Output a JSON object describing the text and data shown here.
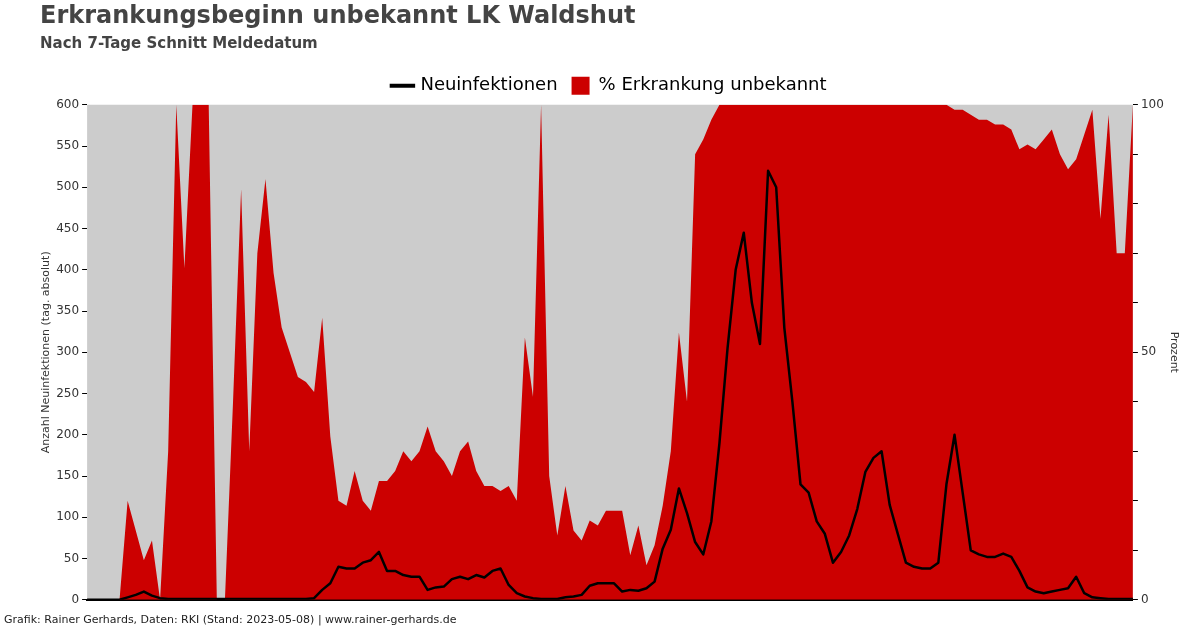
{
  "chart_data": {
    "type": "line",
    "title": "Erkrankungsbeginn unbekannt LK Waldshut",
    "subtitle": "Nach 7-Tage Schnitt Meldedatum",
    "ylabel": "Anzahl Neuinfektionen (tag. absolut)",
    "y2label": "Prozent",
    "categories": [
      null,
      null,
      null,
      null,
      null,
      null,
      null,
      null,
      null,
      null,
      null,
      null,
      null,
      null,
      null,
      null,
      null,
      null,
      null,
      null,
      null,
      null,
      null,
      null,
      null,
      null,
      null,
      null,
      null,
      null,
      null,
      null,
      null,
      null,
      null,
      null,
      null,
      null,
      null,
      null,
      null,
      null,
      null,
      null,
      null,
      null,
      null,
      null,
      null,
      null,
      null,
      null,
      null,
      null,
      null,
      null,
      null,
      null,
      null,
      null,
      null,
      null,
      null,
      null,
      null,
      null,
      null,
      null,
      null,
      null,
      null,
      null,
      null,
      null,
      null,
      null,
      null,
      null,
      null,
      null,
      null,
      null,
      null,
      null,
      null,
      null,
      null,
      null,
      null,
      null,
      null,
      null,
      null,
      null,
      null,
      null,
      null,
      null,
      null,
      null,
      null,
      null,
      null,
      null,
      null,
      null,
      null,
      null,
      null,
      null,
      null,
      null,
      null,
      null,
      null,
      null,
      null,
      null,
      null,
      null,
      null,
      null,
      null,
      null,
      null,
      null,
      null,
      null,
      null,
      null
    ],
    "series": [
      {
        "name": "% Erkrankung unbekannt",
        "type": "area",
        "axis": "y2",
        "color": "#cc0000",
        "values": [
          0,
          0,
          0,
          0,
          0,
          20,
          14,
          8,
          12,
          0,
          30,
          100,
          67,
          100,
          100,
          100,
          0,
          0,
          40,
          83,
          30,
          70,
          85,
          66,
          55,
          50,
          45,
          44,
          42,
          57,
          33,
          20,
          19,
          26,
          20,
          18,
          24,
          24,
          26,
          30,
          28,
          30,
          35,
          30,
          28,
          25,
          30,
          32,
          26,
          23,
          23,
          22,
          23,
          20,
          53,
          41,
          100,
          25,
          13,
          23,
          14,
          12,
          16,
          15,
          18,
          18,
          18,
          9,
          15,
          7,
          11,
          19,
          30,
          54,
          40,
          90,
          93,
          97,
          100,
          100,
          100,
          100,
          100,
          100,
          100,
          100,
          100,
          100,
          100,
          100,
          100,
          100,
          100,
          100,
          100,
          100,
          100,
          100,
          100,
          100,
          100,
          100,
          100,
          100,
          100,
          100,
          100,
          99,
          99,
          98,
          97,
          97,
          96,
          96,
          95,
          91,
          92,
          91,
          93,
          95,
          90,
          87,
          89,
          94,
          99,
          77,
          98,
          70,
          70,
          100
        ]
      },
      {
        "name": "Neuinfektionen",
        "axis": "y",
        "color": "#000000",
        "values": [
          0,
          0,
          0,
          0,
          0,
          3,
          6,
          10,
          5,
          2,
          1,
          1,
          1,
          1,
          1,
          1,
          1,
          1,
          1,
          1,
          1,
          1,
          1,
          1,
          1,
          1,
          1,
          1,
          2,
          12,
          20,
          40,
          38,
          38,
          45,
          48,
          58,
          35,
          35,
          30,
          28,
          28,
          12,
          15,
          16,
          25,
          28,
          25,
          30,
          27,
          35,
          38,
          18,
          8,
          4,
          2,
          1,
          1,
          1,
          3,
          4,
          6,
          17,
          20,
          20,
          20,
          10,
          12,
          11,
          14,
          22,
          62,
          85,
          135,
          105,
          70,
          55,
          95,
          190,
          305,
          400,
          445,
          360,
          310,
          520,
          500,
          330,
          240,
          140,
          130,
          95,
          80,
          45,
          58,
          78,
          110,
          155,
          172,
          180,
          115,
          80,
          45,
          40,
          38,
          38,
          45,
          140,
          200,
          130,
          60,
          55,
          52,
          52,
          56,
          52,
          35,
          15,
          10,
          8,
          10,
          12,
          14,
          28,
          8,
          3,
          2,
          1,
          1,
          1,
          1
        ]
      }
    ],
    "ylim": [
      0,
      600
    ],
    "yticks": [
      0,
      50,
      100,
      150,
      200,
      250,
      300,
      350,
      400,
      450,
      500,
      550,
      600
    ],
    "y2lim": [
      0,
      100
    ],
    "y2ticks": [
      0,
      {
        "value": 10,
        "label": null
      },
      {
        "value": 20,
        "label": null
      },
      {
        "value": 30,
        "label": null
      },
      {
        "value": 40,
        "label": null
      },
      50,
      {
        "value": 60,
        "label": null
      },
      {
        "value": 70,
        "label": null
      },
      {
        "value": 80,
        "label": null
      },
      {
        "value": 90,
        "label": null
      },
      100
    ],
    "tick_labels": "y",
    "grid": false,
    "legend": "top",
    "marker": "none",
    "line_style": "solid",
    "annotations": [
      "Grafik: Rainer Gerhards, Daten: RKI (Stand: 2023-05-08) | www.rainer-gerhards.de"
    ]
  }
}
